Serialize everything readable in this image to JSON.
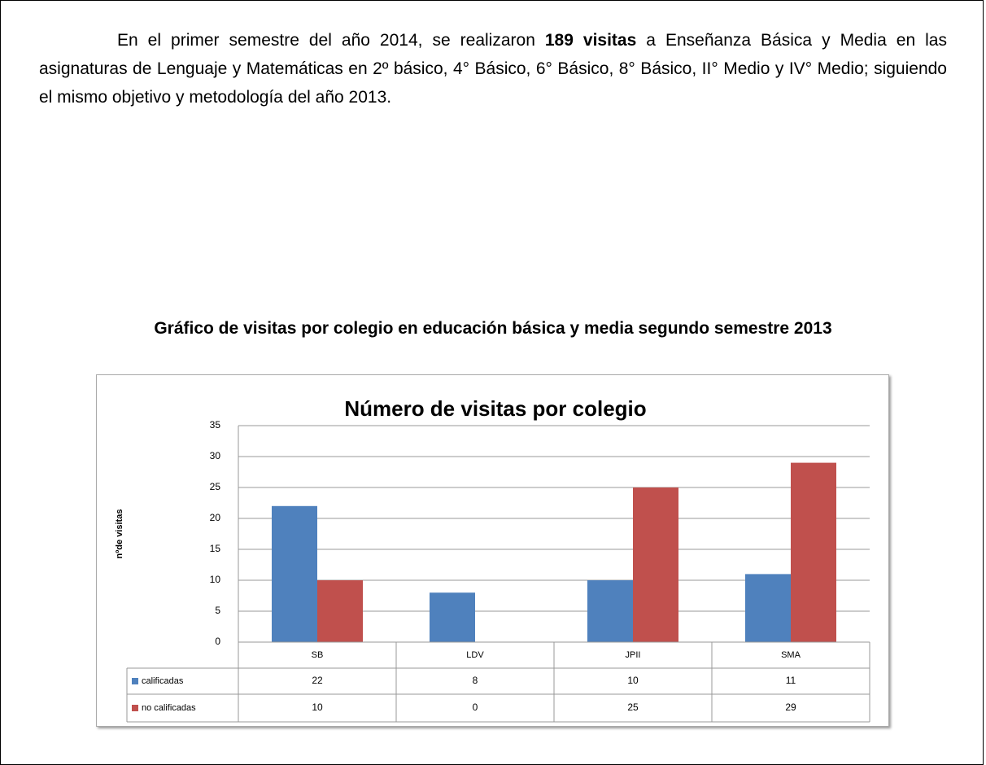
{
  "paragraph": {
    "before": "En el primer semestre del año 2014, se realizaron ",
    "bold": "189 visitas",
    "after": " a Enseñanza Básica y Media en las asignaturas de Lenguaje y Matemáticas en 2º básico, 4° Básico, 6° Básico, 8° Básico, II° Medio y IV° Medio; siguiendo el mismo objetivo y metodología del año 2013."
  },
  "heading": "Gráfico de visitas por colegio en educación básica y media segundo semestre 2013",
  "chart_data": {
    "type": "bar",
    "title": "Número de visitas por colegio",
    "y_label": "nºde visitas",
    "categories": [
      "SB",
      "LDV",
      "JPII",
      "SMA"
    ],
    "series": [
      {
        "name": "calificadas",
        "color": "#4f81bd",
        "values": [
          22,
          8,
          10,
          11
        ]
      },
      {
        "name": "no calificadas",
        "color": "#c0504d",
        "values": [
          10,
          0,
          25,
          29
        ]
      }
    ],
    "ylim": [
      0,
      35
    ],
    "yticks": [
      0,
      5,
      10,
      15,
      20,
      25,
      30,
      35
    ],
    "grid": true
  }
}
